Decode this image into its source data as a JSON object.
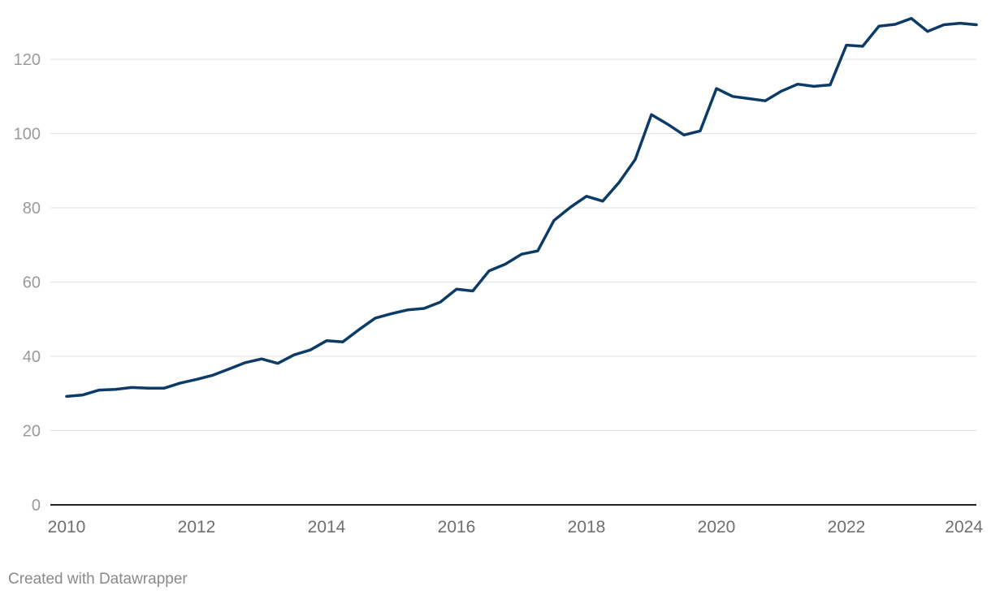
{
  "chart_data": {
    "type": "line",
    "title": "",
    "xlabel": "",
    "ylabel": "",
    "xlim": [
      2010,
      2024
    ],
    "ylim": [
      0,
      130
    ],
    "y_ticks": [
      0,
      20,
      40,
      60,
      80,
      100,
      120
    ],
    "x_ticks": [
      2010,
      2012,
      2014,
      2016,
      2018,
      2020,
      2022,
      2024
    ],
    "grid": true,
    "legend": "none",
    "series": [
      {
        "color": "#0b3b66",
        "x": [
          2010.0,
          2010.25,
          2010.5,
          2010.75,
          2011.0,
          2011.25,
          2011.5,
          2011.75,
          2012.0,
          2012.25,
          2012.5,
          2012.75,
          2013.0,
          2013.25,
          2013.5,
          2013.75,
          2014.0,
          2014.25,
          2014.5,
          2014.75,
          2015.0,
          2015.25,
          2015.5,
          2015.75,
          2016.0,
          2016.25,
          2016.5,
          2016.75,
          2017.0,
          2017.25,
          2017.5,
          2017.75,
          2018.0,
          2018.25,
          2018.5,
          2018.75,
          2019.0,
          2019.25,
          2019.5,
          2019.75,
          2020.0,
          2020.25,
          2020.5,
          2020.75,
          2021.0,
          2021.25,
          2021.5,
          2021.75,
          2022.0,
          2022.25,
          2022.5,
          2022.75,
          2023.0,
          2023.25,
          2023.5,
          2023.75,
          2024.0
        ],
        "y": [
          29.2,
          29.6,
          30.9,
          31.1,
          31.6,
          31.4,
          31.4,
          32.8,
          33.8,
          34.9,
          36.6,
          38.3,
          39.3,
          38.1,
          40.4,
          41.7,
          44.2,
          43.9,
          47.2,
          50.3,
          51.5,
          52.5,
          52.9,
          54.6,
          58.1,
          57.6,
          63.0,
          64.8,
          67.5,
          68.4,
          76.6,
          80.1,
          83.1,
          81.8,
          86.8,
          93.0,
          105.1,
          102.5,
          99.6,
          100.7,
          112.1,
          110.0,
          109.4,
          108.8,
          111.4,
          113.3,
          112.7,
          113.1,
          123.8,
          123.5,
          128.9,
          129.4,
          131.0,
          127.5,
          129.3,
          129.7,
          129.3
        ]
      }
    ]
  },
  "footer": {
    "credit": "Created with Datawrapper"
  }
}
